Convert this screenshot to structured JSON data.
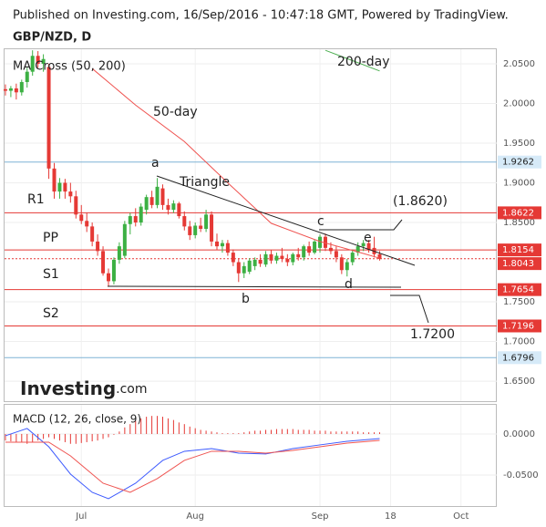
{
  "header": "Published on Investing.com, 16/Sep/2016 - 10:47:18 GMT, Powered by TradingView.",
  "logo": [
    "Investing",
    ".com"
  ],
  "chart_data": {
    "type": "candlestick",
    "title": "GBP/NZD, D",
    "subtitle": "MA Cross (50, 200)",
    "up_color": "#3cb043",
    "down_color": "#e53935",
    "grid": true,
    "xlim": [
      -1,
      90.6
    ],
    "xticks": [
      {
        "value": 14,
        "label": "Jul"
      },
      {
        "value": 35,
        "label": "Aug"
      },
      {
        "value": 58,
        "label": "Sep"
      },
      {
        "value": 71,
        "label": "18"
      },
      {
        "value": 84,
        "label": "Oct"
      }
    ],
    "ylim": [
      1.6248,
      2.0672
    ],
    "yticks": [
      {
        "value": 2.05,
        "label": "2.0500"
      },
      {
        "value": 2.0,
        "label": "2.0000"
      },
      {
        "value": 1.95,
        "label": "1.9500"
      },
      {
        "value": 1.9,
        "label": "1.9000"
      },
      {
        "value": 1.85,
        "label": "1.8500"
      },
      {
        "value": 1.75,
        "label": "1.7500"
      },
      {
        "value": 1.7,
        "label": "1.7000"
      },
      {
        "value": 1.65,
        "label": "1.6500"
      }
    ],
    "candles": [
      [
        2.018,
        2.024,
        2.01,
        2.016
      ],
      [
        2.016,
        2.022,
        2.008,
        2.019
      ],
      [
        2.019,
        2.025,
        2.005,
        2.014
      ],
      [
        2.014,
        2.03,
        2.01,
        2.027
      ],
      [
        2.027,
        2.045,
        2.02,
        2.04
      ],
      [
        2.04,
        2.067,
        2.035,
        2.06
      ],
      [
        2.06,
        2.066,
        2.045,
        2.05
      ],
      [
        2.05,
        2.062,
        2.04,
        2.056
      ],
      [
        2.046,
        2.05,
        1.905,
        1.918
      ],
      [
        1.918,
        1.925,
        1.88,
        1.889
      ],
      [
        1.889,
        1.906,
        1.88,
        1.9
      ],
      [
        1.9,
        1.905,
        1.88,
        1.889
      ],
      [
        1.889,
        1.9,
        1.875,
        1.883
      ],
      [
        1.883,
        1.89,
        1.855,
        1.86
      ],
      [
        1.86,
        1.872,
        1.848,
        1.852
      ],
      [
        1.852,
        1.862,
        1.838,
        1.845
      ],
      [
        1.845,
        1.85,
        1.82,
        1.826
      ],
      [
        1.826,
        1.835,
        1.808,
        1.814
      ],
      [
        1.814,
        1.82,
        1.783,
        1.786
      ],
      [
        1.786,
        1.792,
        1.77,
        1.776
      ],
      [
        1.776,
        1.806,
        1.772,
        1.803
      ],
      [
        1.803,
        1.825,
        1.798,
        1.82
      ],
      [
        1.808,
        1.852,
        1.805,
        1.848
      ],
      [
        1.848,
        1.862,
        1.835,
        1.858
      ],
      [
        1.858,
        1.868,
        1.845,
        1.85
      ],
      [
        1.85,
        1.874,
        1.846,
        1.87
      ],
      [
        1.866,
        1.885,
        1.86,
        1.882
      ],
      [
        1.882,
        1.89,
        1.868,
        1.872
      ],
      [
        1.872,
        1.906,
        1.868,
        1.895
      ],
      [
        1.893,
        1.898,
        1.866,
        1.872
      ],
      [
        1.872,
        1.88,
        1.86,
        1.866
      ],
      [
        1.866,
        1.878,
        1.862,
        1.874
      ],
      [
        1.874,
        1.876,
        1.855,
        1.858
      ],
      [
        1.858,
        1.864,
        1.84,
        1.845
      ],
      [
        1.845,
        1.852,
        1.828,
        1.834
      ],
      [
        1.834,
        1.85,
        1.83,
        1.846
      ],
      [
        1.846,
        1.856,
        1.838,
        1.842
      ],
      [
        1.842,
        1.866,
        1.838,
        1.86
      ],
      [
        1.86,
        1.864,
        1.82,
        1.826
      ],
      [
        1.826,
        1.836,
        1.815,
        1.82
      ],
      [
        1.82,
        1.828,
        1.812,
        1.824
      ],
      [
        1.824,
        1.828,
        1.808,
        1.812
      ],
      [
        1.812,
        1.816,
        1.795,
        1.8
      ],
      [
        1.8,
        1.805,
        1.775,
        1.786
      ],
      [
        1.786,
        1.8,
        1.78,
        1.795
      ],
      [
        1.788,
        1.805,
        1.785,
        1.802
      ],
      [
        1.795,
        1.806,
        1.79,
        1.803
      ],
      [
        1.803,
        1.81,
        1.794,
        1.798
      ],
      [
        1.797,
        1.814,
        1.794,
        1.81
      ],
      [
        1.81,
        1.815,
        1.798,
        1.802
      ],
      [
        1.802,
        1.812,
        1.798,
        1.808
      ],
      [
        1.808,
        1.818,
        1.8,
        1.804
      ],
      [
        1.804,
        1.81,
        1.795,
        1.8
      ],
      [
        1.8,
        1.812,
        1.796,
        1.81
      ],
      [
        1.81,
        1.818,
        1.802,
        1.806
      ],
      [
        1.806,
        1.822,
        1.802,
        1.82
      ],
      [
        1.82,
        1.826,
        1.808,
        1.812
      ],
      [
        1.812,
        1.828,
        1.81,
        1.826
      ],
      [
        1.818,
        1.835,
        1.812,
        1.832
      ],
      [
        1.832,
        1.836,
        1.814,
        1.818
      ],
      [
        1.818,
        1.825,
        1.81,
        1.814
      ],
      [
        1.814,
        1.82,
        1.8,
        1.806
      ],
      [
        1.806,
        1.81,
        1.785,
        1.79
      ],
      [
        1.79,
        1.804,
        1.782,
        1.8
      ],
      [
        1.8,
        1.816,
        1.796,
        1.812
      ],
      [
        1.812,
        1.825,
        1.808,
        1.82
      ],
      [
        1.82,
        1.828,
        1.814,
        1.824
      ],
      [
        1.824,
        1.828,
        1.812,
        1.816
      ],
      [
        1.818,
        1.832,
        1.806,
        1.81
      ],
      [
        1.81,
        1.814,
        1.802,
        1.804
      ]
    ],
    "moving_averages": [
      {
        "name": "50-day",
        "color": "#ef5350",
        "x": [
          16,
          24,
          33,
          41,
          49,
          58,
          66,
          69
        ],
        "values": [
          2.044,
          1.998,
          1.952,
          1.9,
          1.849,
          1.826,
          1.811,
          1.805
        ]
      },
      {
        "name": "200-day",
        "color": "#4caf50",
        "x": [
          59,
          69
        ],
        "values": [
          2.067,
          2.041
        ]
      }
    ],
    "levels": [
      {
        "value": 1.9262,
        "color": "#7fb3d5",
        "label_bg": "#d6eaf8",
        "label_color": "#222222"
      },
      {
        "value": 1.8622,
        "color": "#e53935",
        "label_bg": "#e53935",
        "label_color": "#ffffff"
      },
      {
        "value": 1.8154,
        "color": "#e53935",
        "label_bg": "#e53935",
        "label_color": "#ffffff"
      },
      {
        "value": 1.8043,
        "color": "#e53935",
        "label_bg": "#e53935",
        "label_color": "#ffffff",
        "dotted": true
      },
      {
        "value": 1.7654,
        "color": "#e53935",
        "label_bg": "#e53935",
        "label_color": "#ffffff"
      },
      {
        "value": 1.7196,
        "color": "#e53935",
        "label_bg": "#e53935",
        "label_color": "#ffffff"
      },
      {
        "value": 1.6796,
        "color": "#7fb3d5",
        "label_bg": "#d6eaf8",
        "label_color": "#222222"
      }
    ],
    "annotations": [
      "a",
      "b",
      "c",
      "d",
      "e",
      "Triangle",
      "(1.8620)",
      "1.7200",
      "R1",
      "PP",
      "S1",
      "S2"
    ],
    "macd": {
      "title": "MACD (12, 26, close, 9)",
      "ylim": [
        -0.0878,
        0.0344
      ],
      "yticks": [
        {
          "value": 0,
          "label": "0.0000"
        },
        {
          "value": -0.05,
          "label": "-0.0500"
        }
      ],
      "histogram": {
        "color": "#e53935",
        "values": [
          -0.008,
          -0.009,
          -0.01,
          -0.01,
          -0.012,
          -0.01,
          -0.008,
          -0.006,
          -0.004,
          -0.006,
          -0.008,
          -0.01,
          -0.012,
          -0.012,
          -0.011,
          -0.01,
          -0.009,
          -0.008,
          -0.006,
          -0.004,
          -0.001,
          0.003,
          0.008,
          0.012,
          0.016,
          0.019,
          0.021,
          0.022,
          0.022,
          0.021,
          0.019,
          0.017,
          0.014,
          0.012,
          0.009,
          0.007,
          0.005,
          0.004,
          0.003,
          0.002,
          0.001,
          0.001,
          0.001,
          0.001,
          0.002,
          0.003,
          0.004,
          0.004,
          0.005,
          0.005,
          0.006,
          0.006,
          0.006,
          0.006,
          0.005,
          0.005,
          0.005,
          0.004,
          0.004,
          0.004,
          0.003,
          0.003,
          0.003,
          0.003,
          0.003,
          0.003,
          0.002,
          0.002,
          0.002,
          0.002
        ]
      },
      "lines": [
        {
          "color": "#3d5afe",
          "x": [
            0,
            4,
            8,
            12,
            16,
            19,
            24,
            29,
            33,
            38,
            43,
            48,
            53,
            58,
            63,
            69
          ],
          "values": [
            -0.0022,
            0.0067,
            -0.0156,
            -0.0489,
            -0.0711,
            -0.0789,
            -0.06,
            -0.0322,
            -0.0211,
            -0.0178,
            -0.0233,
            -0.0244,
            -0.0178,
            -0.0133,
            -0.0089,
            -0.0056
          ]
        },
        {
          "color": "#ef5350",
          "x": [
            0,
            8,
            12,
            18,
            23,
            28,
            33,
            38,
            43,
            48,
            53,
            58,
            63,
            69
          ],
          "values": [
            -0.01,
            -0.01,
            -0.0267,
            -0.06,
            -0.0711,
            -0.0544,
            -0.0322,
            -0.0211,
            -0.0211,
            -0.0233,
            -0.02,
            -0.0156,
            -0.0111,
            -0.0078
          ]
        }
      ]
    }
  }
}
